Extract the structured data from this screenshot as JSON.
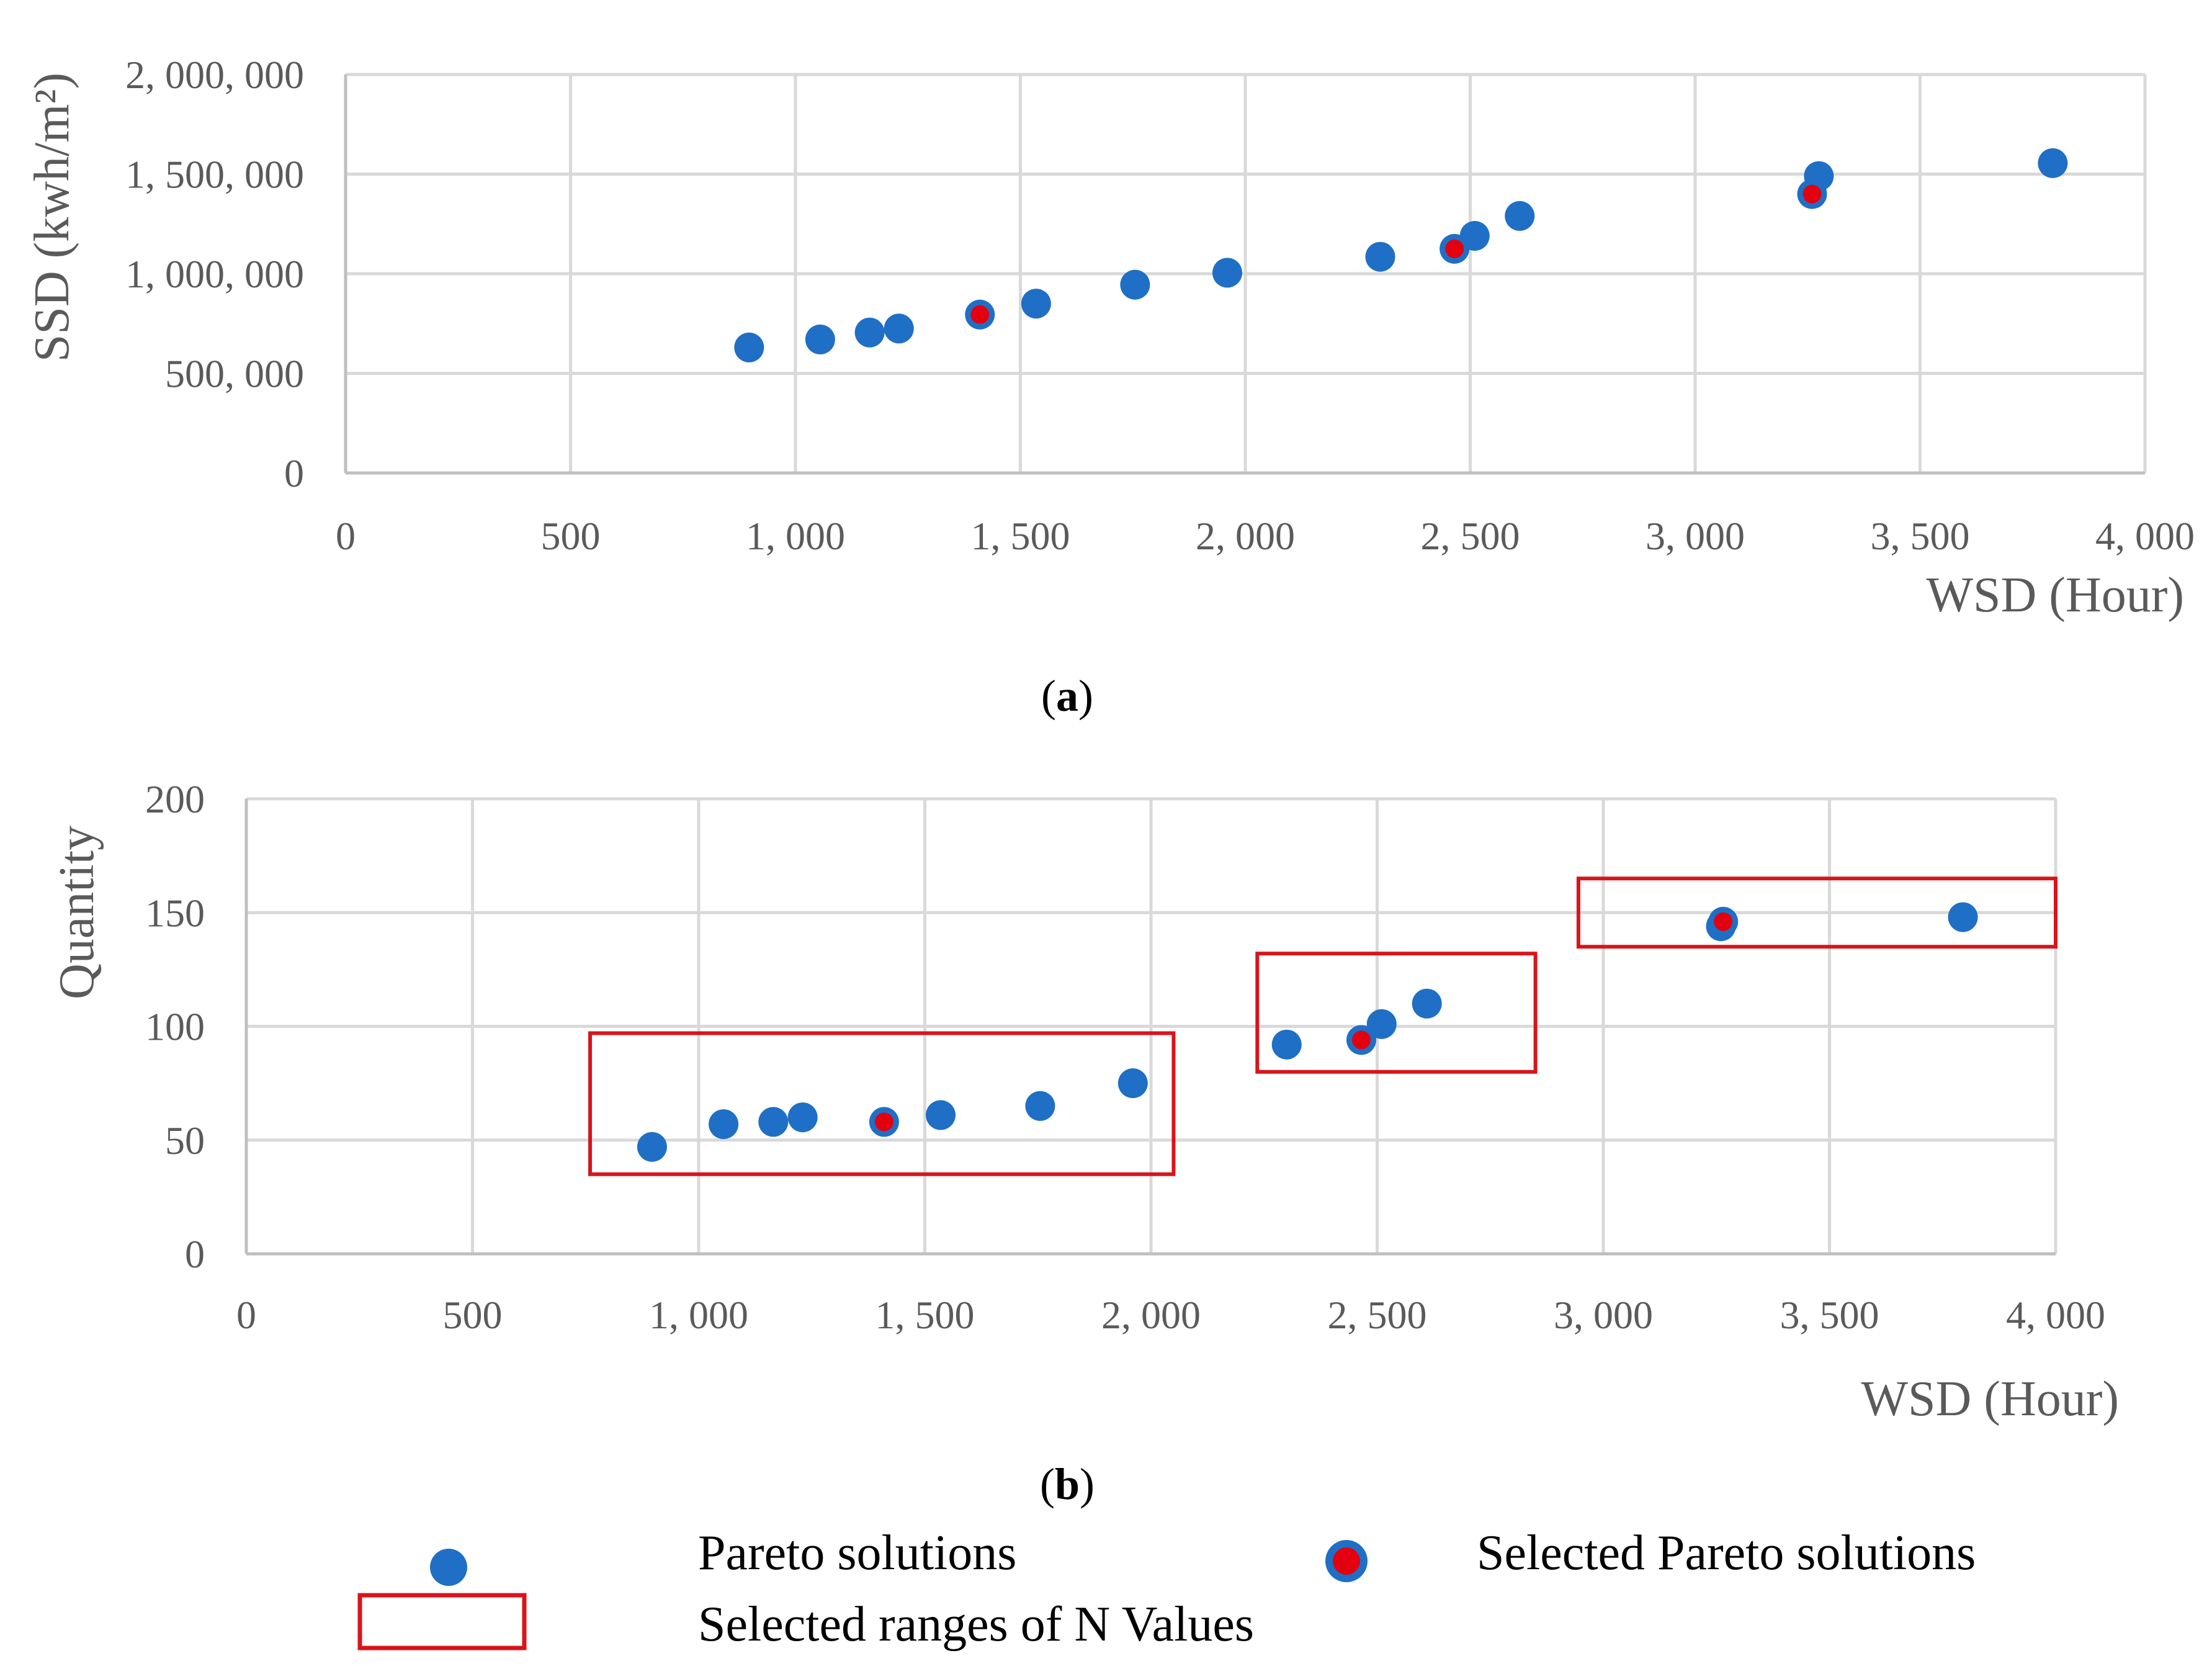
{
  "chart_data": [
    {
      "type": "scatter",
      "panel": "a",
      "caption_label": "a",
      "xlabel": "WSD (Hour)",
      "ylabel": "SSD (kwh/m²)",
      "xlim": [
        0,
        4000
      ],
      "ylim": [
        0,
        2000000
      ],
      "xticks": [
        0,
        500,
        1000,
        1500,
        2000,
        2500,
        3000,
        3500,
        4000
      ],
      "yticks": [
        0,
        500000,
        1000000,
        1500000,
        2000000
      ],
      "xtick_labels": [
        "0",
        "500",
        "1, 000",
        "1, 500",
        "2, 000",
        "2, 500",
        "3, 000",
        "3, 500",
        "4, 000"
      ],
      "ytick_labels": [
        "0",
        "500, 000",
        "1, 000, 000",
        "1, 500, 000",
        "2, 000, 000"
      ],
      "grid": true,
      "series": [
        {
          "name": "Pareto solutions",
          "points": [
            [
              897,
              630000
            ],
            [
              1055,
              670000
            ],
            [
              1165,
              705000
            ],
            [
              1230,
              725000
            ],
            [
              1410,
              795000
            ],
            [
              1535,
              850000
            ],
            [
              1755,
              945000
            ],
            [
              1960,
              1005000
            ],
            [
              2300,
              1085000
            ],
            [
              2465,
              1125000
            ],
            [
              2510,
              1190000
            ],
            [
              2610,
              1290000
            ],
            [
              3260,
              1400000
            ],
            [
              3275,
              1490000
            ],
            [
              3795,
              1555000
            ]
          ]
        },
        {
          "name": "Selected Pareto solutions",
          "points": [
            [
              1410,
              795000
            ],
            [
              2465,
              1125000
            ],
            [
              3260,
              1400000
            ]
          ]
        }
      ]
    },
    {
      "type": "scatter",
      "panel": "b",
      "caption_label": "b",
      "xlabel": "WSD (Hour)",
      "ylabel": "Quantity",
      "xlim": [
        0,
        4000
      ],
      "ylim": [
        0,
        200
      ],
      "xticks": [
        0,
        500,
        1000,
        1500,
        2000,
        2500,
        3000,
        3500,
        4000
      ],
      "yticks": [
        0,
        50,
        100,
        150,
        200
      ],
      "xtick_labels": [
        "0",
        "500",
        "1, 000",
        "1, 500",
        "2, 000",
        "2, 500",
        "3, 000",
        "3, 500",
        "4, 000"
      ],
      "ytick_labels": [
        "0",
        "50",
        "100",
        "150",
        "200"
      ],
      "grid": true,
      "series": [
        {
          "name": "Pareto solutions",
          "points": [
            [
              897,
              47
            ],
            [
              1055,
              57
            ],
            [
              1165,
              58
            ],
            [
              1230,
              60
            ],
            [
              1410,
              58
            ],
            [
              1535,
              61
            ],
            [
              1755,
              65
            ],
            [
              1960,
              75
            ],
            [
              2300,
              92
            ],
            [
              2465,
              94
            ],
            [
              2510,
              101
            ],
            [
              2610,
              110
            ],
            [
              3260,
              144
            ],
            [
              3265,
              146
            ],
            [
              3795,
              148
            ]
          ]
        },
        {
          "name": "Selected Pareto solutions",
          "points": [
            [
              1410,
              58
            ],
            [
              2465,
              94
            ],
            [
              3265,
              146
            ]
          ]
        }
      ],
      "ranges": [
        {
          "x": [
            760,
            2050
          ],
          "y": [
            35,
            97
          ]
        },
        {
          "x": [
            2235,
            2850
          ],
          "y": [
            80,
            132
          ]
        },
        {
          "x": [
            2945,
            4000
          ],
          "y": [
            135,
            165
          ]
        }
      ]
    }
  ],
  "legend": {
    "pareto": "Pareto solutions",
    "selected": "Selected Pareto solutions",
    "ranges": "Selected ranges of N Values"
  },
  "colors": {
    "pareto": "#1f6fc6",
    "selected": "#e3000f",
    "range_box": "#d9141b",
    "grid": "#d9d9d9",
    "axis": "#bfbfbf",
    "text": "#5a5a5a"
  }
}
